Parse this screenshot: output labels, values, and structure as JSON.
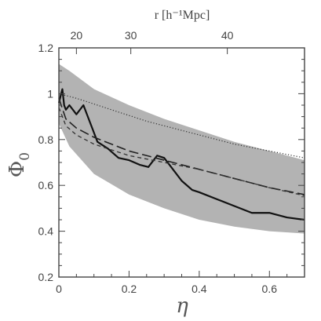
{
  "chart_data": {
    "type": "line",
    "xlabel": "η",
    "ylabel": "Φ",
    "ylabel_subscript": "0",
    "top_axis_label": "r [h⁻¹Mpc]",
    "xlim": [
      0,
      0.7
    ],
    "ylim": [
      0.2,
      1.2
    ],
    "x_ticks": [
      0,
      0.2,
      0.4,
      0.6
    ],
    "x_tick_labels": [
      "0",
      "0.2",
      "0.4",
      "0.6"
    ],
    "y_ticks": [
      0.2,
      0.4,
      0.6,
      0.8,
      1.0,
      1.2
    ],
    "y_tick_labels": [
      "0.2",
      "0.4",
      "0.6",
      "0.8",
      "1",
      "1.2"
    ],
    "top_ticks": [
      {
        "label": "20",
        "eta": 0.05
      },
      {
        "label": "30",
        "eta": 0.205
      },
      {
        "label": "40",
        "eta": 0.48
      }
    ],
    "band": {
      "x": [
        0,
        0.03,
        0.1,
        0.2,
        0.3,
        0.4,
        0.5,
        0.6,
        0.7
      ],
      "upper": [
        1.13,
        1.1,
        1.02,
        0.95,
        0.89,
        0.84,
        0.79,
        0.75,
        0.71
      ],
      "lower": [
        0.87,
        0.77,
        0.65,
        0.56,
        0.5,
        0.45,
        0.42,
        0.4,
        0.39
      ],
      "color": "#b3b3b3"
    },
    "series": [
      {
        "style": "solid",
        "x": [
          0,
          0.005,
          0.01,
          0.015,
          0.02,
          0.03,
          0.05,
          0.07,
          0.09,
          0.11,
          0.14,
          0.17,
          0.2,
          0.23,
          0.255,
          0.28,
          0.3,
          0.32,
          0.35,
          0.38,
          0.4,
          0.45,
          0.5,
          0.55,
          0.6,
          0.65,
          0.7
        ],
        "y": [
          0.96,
          0.99,
          1.02,
          0.95,
          0.93,
          0.95,
          0.91,
          0.95,
          0.87,
          0.79,
          0.76,
          0.72,
          0.71,
          0.69,
          0.68,
          0.73,
          0.72,
          0.68,
          0.62,
          0.58,
          0.57,
          0.54,
          0.51,
          0.48,
          0.48,
          0.46,
          0.45
        ],
        "color": "#111111"
      },
      {
        "style": "long-dash",
        "x": [
          0,
          0.02,
          0.05,
          0.1,
          0.15,
          0.2,
          0.3,
          0.4,
          0.5,
          0.6,
          0.7
        ],
        "y": [
          0.98,
          0.89,
          0.85,
          0.81,
          0.78,
          0.75,
          0.71,
          0.67,
          0.63,
          0.59,
          0.56
        ],
        "color": "#222222"
      },
      {
        "style": "short-dash",
        "x": [
          0,
          0.02,
          0.05,
          0.1,
          0.15,
          0.2,
          0.3,
          0.4,
          0.5,
          0.6,
          0.7
        ],
        "y": [
          0.94,
          0.86,
          0.82,
          0.78,
          0.755,
          0.73,
          0.7,
          0.67,
          0.63,
          0.59,
          0.555
        ],
        "color": "#333333"
      },
      {
        "style": "dotted",
        "x": [
          0,
          0.05,
          0.1,
          0.15,
          0.2,
          0.25,
          0.3,
          0.4,
          0.5,
          0.6,
          0.7
        ],
        "y": [
          1.0,
          0.98,
          0.955,
          0.93,
          0.905,
          0.88,
          0.86,
          0.82,
          0.78,
          0.75,
          0.72
        ],
        "color": "#333333"
      }
    ],
    "grid": false,
    "legend": "none"
  }
}
